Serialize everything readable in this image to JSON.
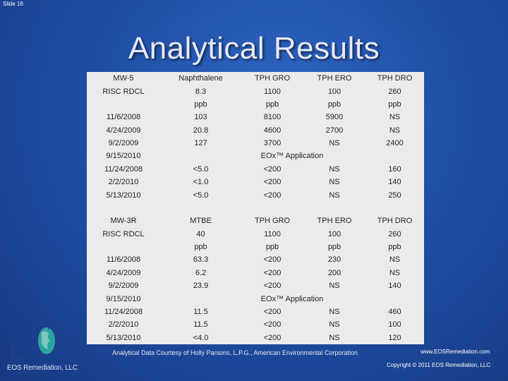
{
  "slide_number": "Slide 16",
  "title": "Analytical Results",
  "table_rows": [
    [
      "MW-5",
      "Naphthalene",
      "TPH GRO",
      "TPH ERO",
      "TPH DRO"
    ],
    [
      "RISC RDCL",
      "8.3",
      "1100",
      "100",
      "260"
    ],
    [
      "",
      "ppb",
      "ppb",
      "ppb",
      "ppb"
    ],
    [
      "11/6/2008",
      "103",
      "8100",
      "5900",
      "NS"
    ],
    [
      "4/24/2009",
      "20.8",
      "4600",
      "2700",
      "NS"
    ],
    [
      "9/2/2009",
      "127",
      "3700",
      "NS",
      "2400"
    ],
    [
      "9/15/2010",
      "EOx™ Application"
    ],
    [
      "11/24/2008",
      "<5.0",
      "<200",
      "NS",
      "160"
    ],
    [
      "2/2/2010",
      "<1.0",
      "<200",
      "NS",
      "140"
    ],
    [
      "5/13/2010",
      "<5.0",
      "<200",
      "NS",
      "250"
    ],
    [
      "",
      "",
      "",
      "",
      ""
    ],
    [
      "MW-3R",
      "MTBE",
      "TPH GRO",
      "TPH ERO",
      "TPH DRO"
    ],
    [
      "RISC RDCL",
      "40",
      "1100",
      "100",
      "260"
    ],
    [
      "",
      "ppb",
      "ppb",
      "ppb",
      "ppb"
    ],
    [
      "11/6/2008",
      "63.3",
      "<200",
      "230",
      "NS"
    ],
    [
      "4/24/2009",
      "6.2",
      "<200",
      "200",
      "NS"
    ],
    [
      "9/2/2009",
      "23.9",
      "<200",
      "NS",
      "140"
    ],
    [
      "9/15/2010",
      "EOx™ Application"
    ],
    [
      "11/24/2008",
      "11.5",
      "<200",
      "NS",
      "460"
    ],
    [
      "2/2/2010",
      "11.5",
      "<200",
      "NS",
      "100"
    ],
    [
      "5/13/2010",
      "<4.0",
      "<200",
      "NS",
      "120"
    ]
  ],
  "logo": {
    "letters": "EOS",
    "caption": "EOS Remediation, LLC"
  },
  "courtesy": "Analytical Data Courtesy of Holly Parsons, L.P.G., American Environmental Corporation",
  "website": "www.EOSRemediation.com",
  "copyright": "Copyright © 2011 EOS Remediation, LLC",
  "colors": {
    "background": "#1f4fa6",
    "table_bg": "#ebebeb",
    "logo_blue": "#1e3f8a",
    "globe_teal": "#2aa6a0"
  }
}
